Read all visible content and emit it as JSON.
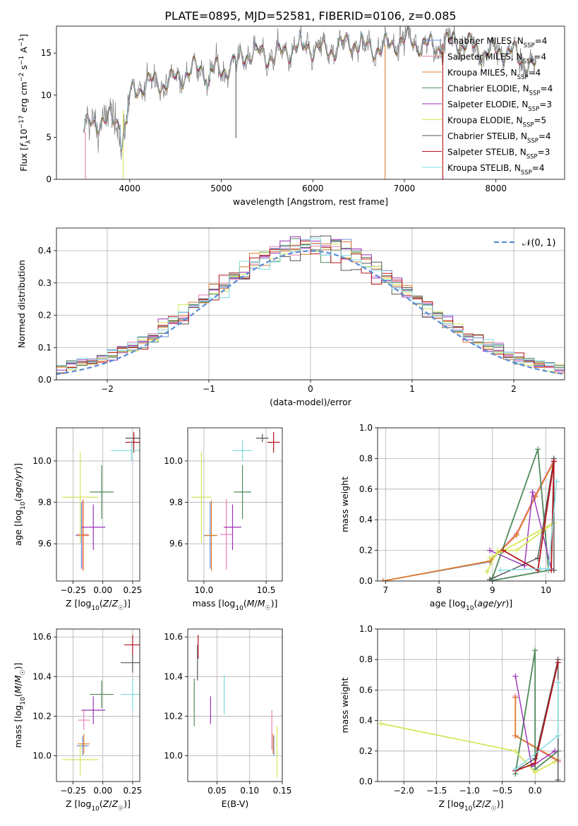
{
  "title": "PLATE=0895, MJD=52581, FIBERID=0106, z=0.085",
  "colors": {
    "Chabrier MILES": "#6b8fd6",
    "Salpeter MILES": "#e77fb6",
    "Kroupa MILES": "#e07b29",
    "Chabrier ELODIE": "#4f8a5a",
    "Salpeter ELODIE": "#9a31b8",
    "Kroupa ELODIE": "#d6e65a",
    "Chabrier STELIB": "#555555",
    "Salpeter STELIB": "#b3151b",
    "Kroupa STELIB": "#7fd9e0"
  },
  "chart_data": [
    {
      "type": "line",
      "id": "spectrum",
      "xlabel": "wavelength [Angstrom, rest frame]",
      "ylabel": "Flux [f_λ10^-17 erg cm^-2 s^-1 A^-1]",
      "xlim": [
        3200,
        8750
      ],
      "ylim": [
        0,
        18.2
      ],
      "xticks": [
        4000,
        5000,
        6000,
        7000,
        8000
      ],
      "yticks": [
        0,
        5,
        10,
        15
      ],
      "grid": false,
      "legend_position": "right",
      "legend": [
        {
          "label": "Chabrier MILES, N_SSP=4",
          "main": "Chabrier MILES, N",
          "sub": "SSP",
          "post": "=4",
          "series": "Chabrier MILES"
        },
        {
          "label": "Salpeter MILES, N_SSP=4",
          "main": "Salpeter MILES, N",
          "sub": "SSP",
          "post": "=4",
          "series": "Salpeter MILES"
        },
        {
          "label": "Kroupa MILES, N_SSP=4",
          "main": "Kroupa MILES, N",
          "sub": "SSP",
          "post": "=4",
          "series": "Kroupa MILES"
        },
        {
          "label": "Chabrier ELODIE, N_SSP=4",
          "main": "Chabrier ELODIE, N",
          "sub": "SSP",
          "post": "=4",
          "series": "Chabrier ELODIE"
        },
        {
          "label": "Salpeter ELODIE, N_SSP=3",
          "main": "Salpeter ELODIE, N",
          "sub": "SSP",
          "post": "=3",
          "series": "Salpeter ELODIE"
        },
        {
          "label": "Kroupa ELODIE, N_SSP=5",
          "main": "Kroupa ELODIE, N",
          "sub": "SSP",
          "post": "=5",
          "series": "Kroupa ELODIE"
        },
        {
          "label": "Chabrier STELIB, N_SSP=4",
          "main": "Chabrier STELIB, N",
          "sub": "SSP",
          "post": "=4",
          "series": "Chabrier STELIB"
        },
        {
          "label": "Salpeter STELIB, N_SSP=3",
          "main": "Salpeter STELIB, N",
          "sub": "SSP",
          "post": "=3",
          "series": "Salpeter STELIB"
        },
        {
          "label": "Kroupa STELIB, N_SSP=4",
          "main": "Kroupa STELIB, N",
          "sub": "SSP",
          "post": "=4",
          "series": "Kroupa STELIB"
        }
      ],
      "wavelength_range": [
        3500,
        8440
      ],
      "continuum_anchors": [
        [
          3500,
          5.5
        ],
        [
          3700,
          7.0
        ],
        [
          3900,
          7.5
        ],
        [
          4000,
          9.8
        ],
        [
          4200,
          11.2
        ],
        [
          4500,
          12.2
        ],
        [
          4800,
          12.8
        ],
        [
          5000,
          13.3
        ],
        [
          5200,
          14.3
        ],
        [
          5500,
          15.0
        ],
        [
          5800,
          15.3
        ],
        [
          6000,
          15.6
        ],
        [
          6300,
          15.8
        ],
        [
          6600,
          15.9
        ],
        [
          7000,
          16.1
        ],
        [
          7300,
          16.2
        ],
        [
          7600,
          16.0
        ],
        [
          7800,
          15.7
        ],
        [
          8000,
          15.3
        ],
        [
          8200,
          14.5
        ],
        [
          8440,
          13.6
        ]
      ],
      "model_dips": [
        {
          "series": "Chabrier STELIB",
          "x": 5160,
          "y": 4.9
        },
        {
          "series": "Kroupa ELODIE",
          "x": 3930,
          "y": 0.0
        },
        {
          "series": "Salpeter MILES",
          "x": 3515,
          "y": 0.0
        },
        {
          "series": "Salpeter STELIB",
          "x": 7420,
          "y": 0.0
        },
        {
          "series": "Kroupa MILES",
          "x": 6790,
          "y": 0.0
        }
      ]
    },
    {
      "type": "step",
      "id": "residual-distribution",
      "xlabel": "(data-model)/error",
      "ylabel": "Normed distribution",
      "xlim": [
        -2.5,
        2.5
      ],
      "ylim": [
        0,
        0.47
      ],
      "xticks": [
        -2,
        -1,
        0,
        1,
        2
      ],
      "yticks": [
        0.0,
        0.1,
        0.2,
        0.3,
        0.4
      ],
      "grid": true,
      "legend_position": "top-right",
      "reference_curve": {
        "label": "𝒩(0, 1)",
        "mean": 0,
        "sigma": 1
      },
      "bin_width": 0.1
    },
    {
      "type": "errorbar",
      "id": "age-vs-Z",
      "xlabel": "Z [log10(Z/Z☉)]",
      "ylabel": "age  [log10(age/yr)]",
      "xlim": [
        -0.39,
        0.31
      ],
      "ylim": [
        9.42,
        10.16
      ],
      "xticks": [
        -0.25,
        0.0,
        0.25
      ],
      "yticks": [
        9.6,
        9.8,
        10.0
      ],
      "grid": true,
      "points": [
        {
          "series": "Chabrier MILES",
          "x": -0.18,
          "xerr": 0.05,
          "y": 9.64,
          "yerr": 0.16
        },
        {
          "series": "Salpeter MILES",
          "x": -0.17,
          "xerr": 0.05,
          "y": 9.645,
          "yerr": 0.17
        },
        {
          "series": "Kroupa MILES",
          "x": -0.165,
          "xerr": 0.05,
          "y": 9.64,
          "yerr": 0.17
        },
        {
          "series": "Chabrier ELODIE",
          "x": -0.01,
          "xerr": 0.1,
          "y": 9.85,
          "yerr": 0.13
        },
        {
          "series": "Salpeter ELODIE",
          "x": -0.08,
          "xerr": 0.1,
          "y": 9.68,
          "yerr": 0.11
        },
        {
          "series": "Kroupa ELODIE",
          "x": -0.19,
          "xerr": 0.15,
          "y": 9.825,
          "yerr": 0.22
        },
        {
          "series": "Chabrier STELIB",
          "x": 0.26,
          "xerr": 0.07,
          "y": 10.11,
          "yerr": 0.02
        },
        {
          "series": "Salpeter STELIB",
          "x": 0.26,
          "xerr": 0.07,
          "y": 10.09,
          "yerr": 0.05
        },
        {
          "series": "Kroupa STELIB",
          "x": 0.24,
          "xerr": 0.17,
          "y": 10.05,
          "yerr": 0.05
        }
      ]
    },
    {
      "type": "errorbar",
      "id": "age-vs-mass",
      "xlabel": "mass [log10(M/M☉)]",
      "ylabel": "",
      "xlim": [
        9.87,
        10.63
      ],
      "ylim": [
        9.42,
        10.16
      ],
      "xticks": [
        10.0,
        10.5
      ],
      "yticks": [
        9.6,
        9.8,
        10.0
      ],
      "grid": true,
      "points": [
        {
          "series": "Chabrier MILES",
          "x": 10.05,
          "xerr": 0.05,
          "y": 9.64,
          "yerr": 0.16
        },
        {
          "series": "Salpeter MILES",
          "x": 10.18,
          "xerr": 0.05,
          "y": 9.645,
          "yerr": 0.17
        },
        {
          "series": "Kroupa MILES",
          "x": 10.06,
          "xerr": 0.05,
          "y": 9.64,
          "yerr": 0.17
        },
        {
          "series": "Chabrier ELODIE",
          "x": 10.31,
          "xerr": 0.07,
          "y": 9.85,
          "yerr": 0.13
        },
        {
          "series": "Salpeter ELODIE",
          "x": 10.23,
          "xerr": 0.07,
          "y": 9.68,
          "yerr": 0.11
        },
        {
          "series": "Kroupa ELODIE",
          "x": 9.98,
          "xerr": 0.08,
          "y": 9.825,
          "yerr": 0.22
        },
        {
          "series": "Chabrier STELIB",
          "x": 10.47,
          "xerr": 0.05,
          "y": 10.11,
          "yerr": 0.02
        },
        {
          "series": "Salpeter STELIB",
          "x": 10.56,
          "xerr": 0.05,
          "y": 10.09,
          "yerr": 0.05
        },
        {
          "series": "Kroupa STELIB",
          "x": 10.31,
          "xerr": 0.08,
          "y": 10.05,
          "yerr": 0.05
        }
      ]
    },
    {
      "type": "line",
      "id": "weight-vs-age",
      "xlabel": "age  [log10(age/yr)]",
      "ylabel": "mass weight",
      "xlim": [
        6.85,
        10.35
      ],
      "ylim": [
        0,
        1.0
      ],
      "xticks": [
        7,
        8,
        9,
        10
      ],
      "yticks": [
        0.0,
        0.2,
        0.4,
        0.6,
        0.8,
        1.0
      ],
      "grid": true,
      "series": [
        {
          "name": "Chabrier MILES",
          "x": [
            6.95,
            8.95,
            9.45,
            9.8,
            10.15
          ],
          "y": [
            0.0,
            0.125,
            0.3,
            0.55,
            0.78
          ]
        },
        {
          "name": "Salpeter MILES",
          "x": [
            6.95,
            8.95,
            9.45,
            9.8,
            10.15
          ],
          "y": [
            0.0,
            0.13,
            0.31,
            0.56,
            0.79
          ]
        },
        {
          "name": "Kroupa MILES",
          "x": [
            6.95,
            8.95,
            9.45,
            9.8,
            10.15
          ],
          "y": [
            0.0,
            0.13,
            0.3,
            0.55,
            0.78
          ]
        },
        {
          "name": "Chabrier ELODIE",
          "x": [
            9.0,
            9.85,
            10.05,
            8.95
          ],
          "y": [
            0.02,
            0.86,
            0.07,
            0.0
          ]
        },
        {
          "name": "Salpeter ELODIE",
          "x": [
            8.95,
            9.6,
            9.75,
            10.1
          ],
          "y": [
            0.2,
            0.1,
            0.58,
            0.08
          ]
        },
        {
          "name": "Kroupa ELODIE",
          "x": [
            8.9,
            9.1,
            9.45,
            10.15,
            8.95
          ],
          "y": [
            0.06,
            0.2,
            0.2,
            0.38,
            0.15
          ]
        },
        {
          "name": "Chabrier STELIB",
          "x": [
            8.95,
            9.85,
            10.15,
            10.15
          ],
          "y": [
            0.01,
            0.15,
            0.8,
            0.07
          ]
        },
        {
          "name": "Salpeter STELIB",
          "x": [
            9.2,
            9.85,
            10.15,
            10.1
          ],
          "y": [
            0.2,
            0.07,
            0.78,
            0.07
          ]
        },
        {
          "name": "Kroupa STELIB",
          "x": [
            9.15,
            9.9,
            10.05,
            10.2
          ],
          "y": [
            0.07,
            0.08,
            0.08,
            0.65
          ]
        }
      ]
    },
    {
      "type": "errorbar",
      "id": "mass-vs-Z",
      "xlabel": "Z [log10(Z/Z☉)]",
      "ylabel": "mass [log10(M/M☉)]",
      "xlim": [
        -0.39,
        0.31
      ],
      "ylim": [
        9.87,
        10.64
      ],
      "xticks": [
        -0.25,
        0.0,
        0.25
      ],
      "yticks": [
        10.0,
        10.2,
        10.4,
        10.6
      ],
      "grid": true,
      "points": [
        {
          "series": "Chabrier MILES",
          "x": -0.17,
          "xerr": 0.05,
          "y": 10.05,
          "yerr": 0.05
        },
        {
          "series": "Salpeter MILES",
          "x": -0.16,
          "xerr": 0.05,
          "y": 10.18,
          "yerr": 0.05
        },
        {
          "series": "Kroupa MILES",
          "x": -0.16,
          "xerr": 0.05,
          "y": 10.06,
          "yerr": 0.05
        },
        {
          "series": "Chabrier ELODIE",
          "x": -0.01,
          "xerr": 0.1,
          "y": 10.31,
          "yerr": 0.07
        },
        {
          "series": "Salpeter ELODIE",
          "x": -0.08,
          "xerr": 0.1,
          "y": 10.23,
          "yerr": 0.07
        },
        {
          "series": "Kroupa ELODIE",
          "x": -0.19,
          "xerr": 0.15,
          "y": 9.98,
          "yerr": 0.08
        },
        {
          "series": "Chabrier STELIB",
          "x": 0.25,
          "xerr": 0.1,
          "y": 10.47,
          "yerr": 0.05
        },
        {
          "series": "Salpeter STELIB",
          "x": 0.25,
          "xerr": 0.07,
          "y": 10.56,
          "yerr": 0.05
        },
        {
          "series": "Kroupa STELIB",
          "x": 0.25,
          "xerr": 0.1,
          "y": 10.31,
          "yerr": 0.08
        }
      ]
    },
    {
      "type": "errorbar",
      "id": "mass-vs-EBV",
      "xlabel": "E(B-V)",
      "ylabel": "",
      "xlim": [
        0.005,
        0.15
      ],
      "ylim": [
        9.87,
        10.64
      ],
      "xticks": [
        0.05,
        0.1,
        0.15
      ],
      "yticks": [
        10.0,
        10.2,
        10.4,
        10.6
      ],
      "grid": true,
      "points": [
        {
          "series": "Chabrier MILES",
          "x": 0.137,
          "xerr": 0.0,
          "y": 10.05,
          "yerr": 0.05
        },
        {
          "series": "Salpeter MILES",
          "x": 0.134,
          "xerr": 0.0,
          "y": 10.13,
          "yerr": 0.1
        },
        {
          "series": "Kroupa MILES",
          "x": 0.136,
          "xerr": 0.0,
          "y": 10.06,
          "yerr": 0.05
        },
        {
          "series": "Chabrier ELODIE",
          "x": 0.015,
          "xerr": 0.0,
          "y": 10.27,
          "yerr": 0.12
        },
        {
          "series": "Salpeter ELODIE",
          "x": 0.04,
          "xerr": 0.0,
          "y": 10.23,
          "yerr": 0.07
        },
        {
          "series": "Kroupa ELODIE",
          "x": 0.142,
          "xerr": 0.0,
          "y": 10.02,
          "yerr": 0.13
        },
        {
          "series": "Chabrier STELIB",
          "x": 0.02,
          "xerr": 0.0,
          "y": 10.47,
          "yerr": 0.09
        },
        {
          "series": "Salpeter STELIB",
          "x": 0.021,
          "xerr": 0.0,
          "y": 10.55,
          "yerr": 0.06
        },
        {
          "series": "Kroupa STELIB",
          "x": 0.061,
          "xerr": 0.0,
          "y": 10.31,
          "yerr": 0.1
        }
      ]
    },
    {
      "type": "line",
      "id": "weight-vs-Z",
      "xlabel": "Z [log10(Z/Z☉)]",
      "ylabel": "mass weight",
      "xlim": [
        -2.4,
        0.45
      ],
      "ylim": [
        0,
        1.0
      ],
      "xticks": [
        -2.0,
        -1.5,
        -1.0,
        -0.5,
        0.0
      ],
      "yticks": [
        0.0,
        0.2,
        0.4,
        0.6,
        0.8,
        1.0
      ],
      "grid": true,
      "series": [
        {
          "name": "Chabrier MILES",
          "x": [
            -0.3,
            -0.3,
            0.35,
            0.35
          ],
          "y": [
            0.55,
            0.3,
            0.14,
            0.65
          ]
        },
        {
          "name": "Salpeter MILES",
          "x": [
            -0.3,
            -0.3,
            0.35,
            0.35
          ],
          "y": [
            0.56,
            0.3,
            0.13,
            0.13
          ]
        },
        {
          "name": "Kroupa MILES",
          "x": [
            -0.3,
            -0.3,
            0.35
          ],
          "y": [
            0.55,
            0.3,
            0.14
          ]
        },
        {
          "name": "Chabrier ELODIE",
          "x": [
            -0.3,
            0.0,
            0.0,
            0.35
          ],
          "y": [
            0.05,
            0.86,
            0.08,
            0.2
          ]
        },
        {
          "name": "Salpeter ELODIE",
          "x": [
            -0.3,
            -0.05,
            0.3
          ],
          "y": [
            0.69,
            0.1,
            0.2
          ]
        },
        {
          "name": "Kroupa ELODIE",
          "x": [
            -2.35,
            -0.3,
            0.0,
            0.3
          ],
          "y": [
            0.38,
            0.2,
            0.06,
            0.13
          ]
        },
        {
          "name": "Chabrier STELIB",
          "x": [
            -0.3,
            0.0,
            0.35,
            0.35
          ],
          "y": [
            0.07,
            0.15,
            0.8,
            0.01
          ]
        },
        {
          "name": "Salpeter STELIB",
          "x": [
            -0.3,
            0.0,
            0.35
          ],
          "y": [
            0.07,
            0.12,
            0.78
          ]
        },
        {
          "name": "Kroupa STELIB",
          "x": [
            -0.3,
            0.35,
            0.35
          ],
          "y": [
            0.08,
            0.3,
            0.65
          ]
        }
      ]
    }
  ]
}
